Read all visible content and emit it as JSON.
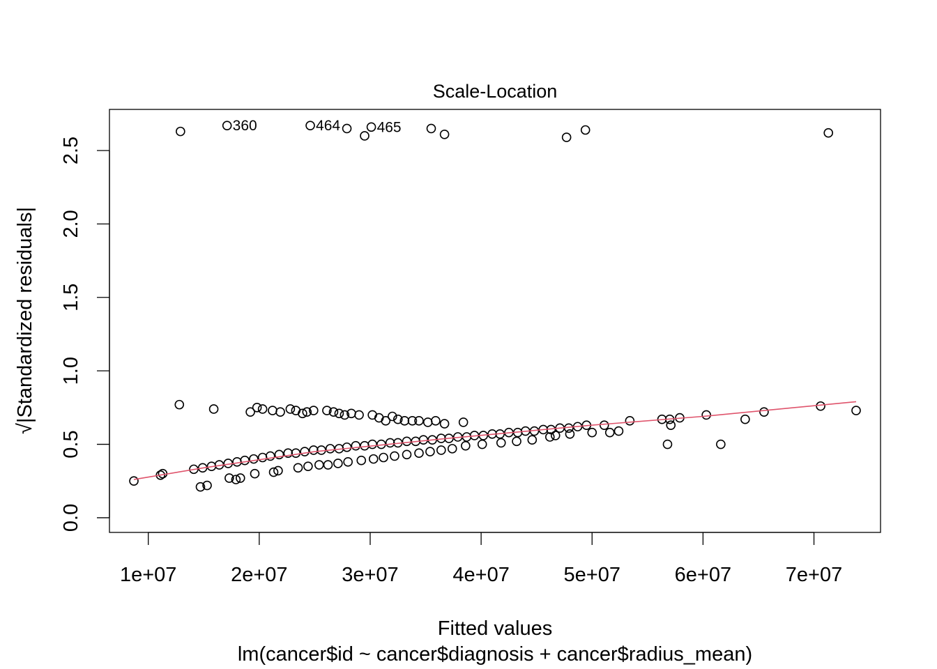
{
  "chart_data": {
    "type": "scatter",
    "title": "Scale-Location",
    "xlabel": "Fitted values",
    "subtitle": "lm(cancer$id ~ cancer$diagnosis + cancer$radius_mean)",
    "ylabel": "√|Standardized residuals|",
    "xlim": [
      6500000,
      76000000
    ],
    "ylim": [
      -0.1,
      2.78
    ],
    "x_ticks": [
      10000000,
      20000000,
      30000000,
      40000000,
      50000000,
      60000000,
      70000000
    ],
    "x_tick_labels": [
      "1e+07",
      "2e+07",
      "3e+07",
      "4e+07",
      "5e+07",
      "6e+07",
      "7e+07"
    ],
    "y_ticks": [
      0.0,
      0.5,
      1.0,
      1.5,
      2.0,
      2.5
    ],
    "y_tick_labels": [
      "0.0",
      "0.5",
      "1.0",
      "1.5",
      "2.0",
      "2.5"
    ],
    "point_color": "#000000",
    "smooth_color": "#DF536B",
    "grid": false,
    "labeled_points": [
      {
        "label": "360",
        "x": 17100000,
        "y": 2.67
      },
      {
        "label": "464",
        "x": 24600000,
        "y": 2.67
      },
      {
        "label": "465",
        "x": 30100000,
        "y": 2.66
      }
    ],
    "outliers_high": [
      {
        "x": 12900000,
        "y": 2.63
      },
      {
        "x": 27900000,
        "y": 2.65
      },
      {
        "x": 29500000,
        "y": 2.6
      },
      {
        "x": 35500000,
        "y": 2.65
      },
      {
        "x": 36700000,
        "y": 2.61
      },
      {
        "x": 47700000,
        "y": 2.59
      },
      {
        "x": 49400000,
        "y": 2.64
      },
      {
        "x": 71300000,
        "y": 2.62
      }
    ],
    "upper_band": [
      {
        "x": 12800000,
        "y": 0.77
      },
      {
        "x": 15900000,
        "y": 0.74
      },
      {
        "x": 19200000,
        "y": 0.72
      },
      {
        "x": 19800000,
        "y": 0.75
      },
      {
        "x": 20300000,
        "y": 0.74
      },
      {
        "x": 21200000,
        "y": 0.73
      },
      {
        "x": 21900000,
        "y": 0.72
      },
      {
        "x": 22800000,
        "y": 0.74
      },
      {
        "x": 23300000,
        "y": 0.73
      },
      {
        "x": 23900000,
        "y": 0.71
      },
      {
        "x": 24300000,
        "y": 0.72
      },
      {
        "x": 24900000,
        "y": 0.73
      },
      {
        "x": 26100000,
        "y": 0.73
      },
      {
        "x": 26700000,
        "y": 0.72
      },
      {
        "x": 27200000,
        "y": 0.71
      },
      {
        "x": 27700000,
        "y": 0.7
      },
      {
        "x": 28300000,
        "y": 0.71
      },
      {
        "x": 29000000,
        "y": 0.7
      },
      {
        "x": 30200000,
        "y": 0.7
      },
      {
        "x": 30800000,
        "y": 0.68
      },
      {
        "x": 31400000,
        "y": 0.66
      },
      {
        "x": 32000000,
        "y": 0.69
      },
      {
        "x": 32500000,
        "y": 0.67
      },
      {
        "x": 33100000,
        "y": 0.66
      },
      {
        "x": 33800000,
        "y": 0.66
      },
      {
        "x": 34400000,
        "y": 0.66
      },
      {
        "x": 35200000,
        "y": 0.65
      },
      {
        "x": 35900000,
        "y": 0.66
      },
      {
        "x": 36700000,
        "y": 0.64
      },
      {
        "x": 38400000,
        "y": 0.65
      }
    ],
    "main_band": [
      {
        "x": 8700000,
        "y": 0.25
      },
      {
        "x": 11100000,
        "y": 0.29
      },
      {
        "x": 11300000,
        "y": 0.3
      },
      {
        "x": 14100000,
        "y": 0.33
      },
      {
        "x": 14900000,
        "y": 0.34
      },
      {
        "x": 15700000,
        "y": 0.35
      },
      {
        "x": 16400000,
        "y": 0.36
      },
      {
        "x": 17200000,
        "y": 0.37
      },
      {
        "x": 18000000,
        "y": 0.38
      },
      {
        "x": 18700000,
        "y": 0.39
      },
      {
        "x": 19500000,
        "y": 0.4
      },
      {
        "x": 20300000,
        "y": 0.41
      },
      {
        "x": 21000000,
        "y": 0.42
      },
      {
        "x": 21800000,
        "y": 0.43
      },
      {
        "x": 22600000,
        "y": 0.44
      },
      {
        "x": 23300000,
        "y": 0.44
      },
      {
        "x": 24100000,
        "y": 0.45
      },
      {
        "x": 24900000,
        "y": 0.46
      },
      {
        "x": 25600000,
        "y": 0.46
      },
      {
        "x": 26400000,
        "y": 0.47
      },
      {
        "x": 27200000,
        "y": 0.47
      },
      {
        "x": 27900000,
        "y": 0.48
      },
      {
        "x": 28700000,
        "y": 0.49
      },
      {
        "x": 29500000,
        "y": 0.49
      },
      {
        "x": 30200000,
        "y": 0.5
      },
      {
        "x": 31000000,
        "y": 0.5
      },
      {
        "x": 31800000,
        "y": 0.51
      },
      {
        "x": 32500000,
        "y": 0.51
      },
      {
        "x": 33300000,
        "y": 0.52
      },
      {
        "x": 34100000,
        "y": 0.52
      },
      {
        "x": 34800000,
        "y": 0.53
      },
      {
        "x": 35600000,
        "y": 0.53
      },
      {
        "x": 36400000,
        "y": 0.54
      },
      {
        "x": 37100000,
        "y": 0.54
      },
      {
        "x": 37900000,
        "y": 0.55
      },
      {
        "x": 38700000,
        "y": 0.55
      },
      {
        "x": 39400000,
        "y": 0.56
      },
      {
        "x": 40200000,
        "y": 0.56
      },
      {
        "x": 41000000,
        "y": 0.57
      },
      {
        "x": 41700000,
        "y": 0.57
      },
      {
        "x": 42500000,
        "y": 0.58
      },
      {
        "x": 43300000,
        "y": 0.58
      },
      {
        "x": 44000000,
        "y": 0.59
      },
      {
        "x": 44800000,
        "y": 0.59
      },
      {
        "x": 45600000,
        "y": 0.6
      },
      {
        "x": 46300000,
        "y": 0.6
      },
      {
        "x": 47100000,
        "y": 0.61
      },
      {
        "x": 47900000,
        "y": 0.61
      },
      {
        "x": 48700000,
        "y": 0.62
      },
      {
        "x": 49500000,
        "y": 0.63
      },
      {
        "x": 51100000,
        "y": 0.63
      },
      {
        "x": 53400000,
        "y": 0.66
      },
      {
        "x": 56300000,
        "y": 0.67
      },
      {
        "x": 57000000,
        "y": 0.67
      },
      {
        "x": 57900000,
        "y": 0.68
      },
      {
        "x": 60300000,
        "y": 0.7
      },
      {
        "x": 63800000,
        "y": 0.67
      },
      {
        "x": 65500000,
        "y": 0.72
      },
      {
        "x": 70600000,
        "y": 0.76
      },
      {
        "x": 73800000,
        "y": 0.73
      }
    ],
    "lower_band": [
      {
        "x": 14700000,
        "y": 0.21
      },
      {
        "x": 15300000,
        "y": 0.22
      },
      {
        "x": 17300000,
        "y": 0.27
      },
      {
        "x": 17900000,
        "y": 0.26
      },
      {
        "x": 18300000,
        "y": 0.27
      },
      {
        "x": 19600000,
        "y": 0.3
      },
      {
        "x": 21300000,
        "y": 0.31
      },
      {
        "x": 21700000,
        "y": 0.32
      },
      {
        "x": 23500000,
        "y": 0.34
      },
      {
        "x": 24400000,
        "y": 0.35
      },
      {
        "x": 25400000,
        "y": 0.36
      },
      {
        "x": 26200000,
        "y": 0.36
      },
      {
        "x": 27100000,
        "y": 0.37
      },
      {
        "x": 28000000,
        "y": 0.38
      },
      {
        "x": 29200000,
        "y": 0.39
      },
      {
        "x": 30300000,
        "y": 0.4
      },
      {
        "x": 31200000,
        "y": 0.41
      },
      {
        "x": 32200000,
        "y": 0.42
      },
      {
        "x": 33300000,
        "y": 0.43
      },
      {
        "x": 34400000,
        "y": 0.44
      },
      {
        "x": 35400000,
        "y": 0.45
      },
      {
        "x": 36400000,
        "y": 0.46
      },
      {
        "x": 37400000,
        "y": 0.47
      },
      {
        "x": 38600000,
        "y": 0.49
      },
      {
        "x": 40100000,
        "y": 0.5
      },
      {
        "x": 41800000,
        "y": 0.51
      },
      {
        "x": 43200000,
        "y": 0.52
      },
      {
        "x": 44600000,
        "y": 0.53
      },
      {
        "x": 46200000,
        "y": 0.55
      },
      {
        "x": 46700000,
        "y": 0.56
      },
      {
        "x": 48000000,
        "y": 0.57
      },
      {
        "x": 50000000,
        "y": 0.58
      },
      {
        "x": 51600000,
        "y": 0.58
      },
      {
        "x": 52400000,
        "y": 0.59
      },
      {
        "x": 56800000,
        "y": 0.5
      },
      {
        "x": 57100000,
        "y": 0.63
      },
      {
        "x": 61600000,
        "y": 0.5
      }
    ],
    "smooth_line": [
      {
        "x": 8700000,
        "y": 0.26
      },
      {
        "x": 15000000,
        "y": 0.34
      },
      {
        "x": 25000000,
        "y": 0.45
      },
      {
        "x": 37000000,
        "y": 0.54
      },
      {
        "x": 50000000,
        "y": 0.63
      },
      {
        "x": 60000000,
        "y": 0.69
      },
      {
        "x": 73800000,
        "y": 0.79
      }
    ]
  }
}
